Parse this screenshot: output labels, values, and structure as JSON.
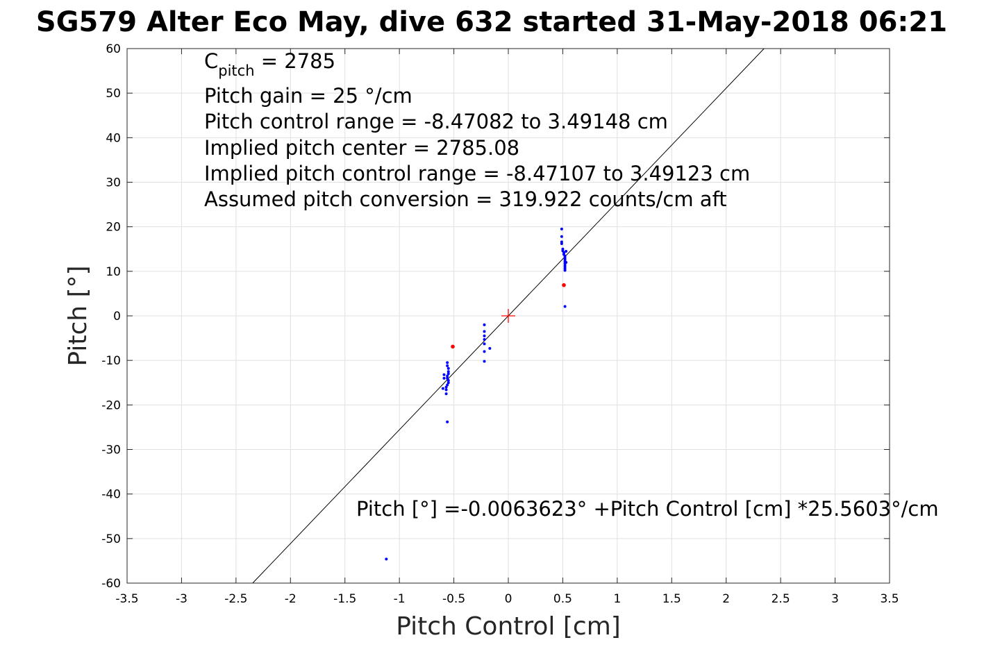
{
  "chart_data": {
    "type": "scatter",
    "title": "SG579 Alter Eco May, dive 632 started 31-May-2018 06:21",
    "xlabel": "Pitch Control [cm]",
    "ylabel": "Pitch [°]",
    "xlim": [
      -3.5,
      3.5
    ],
    "ylim": [
      -60,
      60
    ],
    "grid": true,
    "x_ticks": [
      "-3.5",
      "-3",
      "-2.5",
      "-2",
      "-1.5",
      "-1",
      "-0.5",
      "0",
      "0.5",
      "1",
      "1.5",
      "2",
      "2.5",
      "3",
      "3.5"
    ],
    "y_ticks": [
      "60",
      "50",
      "40",
      "30",
      "20",
      "10",
      "0",
      "-10",
      "-20",
      "-30",
      "-40",
      "-50",
      "-60"
    ],
    "annotations": {
      "c_pitch_main": "C",
      "c_pitch_sub": "pitch",
      "c_pitch_value": " = 2785",
      "lines": [
        "Pitch gain = 25 °/cm",
        "Pitch control range = -8.47082 to 3.49148 cm",
        "Implied pitch center = 2785.08",
        "Implied pitch control range = -8.47107 to 3.49123 cm",
        "Assumed pitch conversion = 319.922 counts/cm aft"
      ],
      "fit_equation": "Pitch [°] =-0.0063623° +Pitch Control [cm] *25.5603°/cm"
    },
    "fit_line": {
      "intercept": -0.0063623,
      "slope": 25.5603,
      "color": "#000000"
    },
    "center_marker": {
      "x": 0,
      "y": 0,
      "color": "#ff0000"
    },
    "series": [
      {
        "color": "#0000ff",
        "points": [
          [
            0.49,
            19.5
          ],
          [
            0.49,
            17.8
          ],
          [
            0.49,
            16.6
          ],
          [
            0.49,
            16.2
          ],
          [
            0.5,
            15.0
          ],
          [
            0.5,
            14.6
          ],
          [
            0.51,
            14.2
          ],
          [
            0.51,
            13.8
          ],
          [
            0.52,
            13.4
          ],
          [
            0.52,
            13.0
          ],
          [
            0.52,
            12.6
          ],
          [
            0.52,
            12.2
          ],
          [
            0.52,
            11.8
          ],
          [
            0.52,
            11.4
          ],
          [
            0.52,
            11.0
          ],
          [
            0.52,
            10.6
          ],
          [
            0.52,
            10.2
          ],
          [
            0.53,
            14.5
          ],
          [
            0.53,
            12.0
          ],
          [
            0.52,
            2.1
          ],
          [
            -0.22,
            -2.0
          ],
          [
            -0.22,
            -3.5
          ],
          [
            -0.22,
            -4.5
          ],
          [
            -0.22,
            -5.3
          ],
          [
            -0.22,
            -6.3
          ],
          [
            -0.22,
            -8.0
          ],
          [
            -0.22,
            -10.2
          ],
          [
            -0.17,
            -7.3
          ],
          [
            -0.56,
            -10.5
          ],
          [
            -0.56,
            -11.2
          ],
          [
            -0.55,
            -11.8
          ],
          [
            -0.55,
            -12.5
          ],
          [
            -0.55,
            -13.0
          ],
          [
            -0.56,
            -13.5
          ],
          [
            -0.56,
            -14.0
          ],
          [
            -0.55,
            -14.5
          ],
          [
            -0.55,
            -15.0
          ],
          [
            -0.56,
            -15.5
          ],
          [
            -0.57,
            -16.0
          ],
          [
            -0.57,
            -16.6
          ],
          [
            -0.57,
            -17.5
          ],
          [
            -0.59,
            -13.2
          ],
          [
            -0.59,
            -14.0
          ],
          [
            -0.6,
            -16.3
          ],
          [
            -0.56,
            -23.8
          ],
          [
            -1.12,
            -54.6
          ]
        ]
      },
      {
        "color": "#ff0000",
        "points": [
          [
            -0.51,
            -6.9
          ],
          [
            0.51,
            6.9
          ]
        ]
      }
    ]
  }
}
